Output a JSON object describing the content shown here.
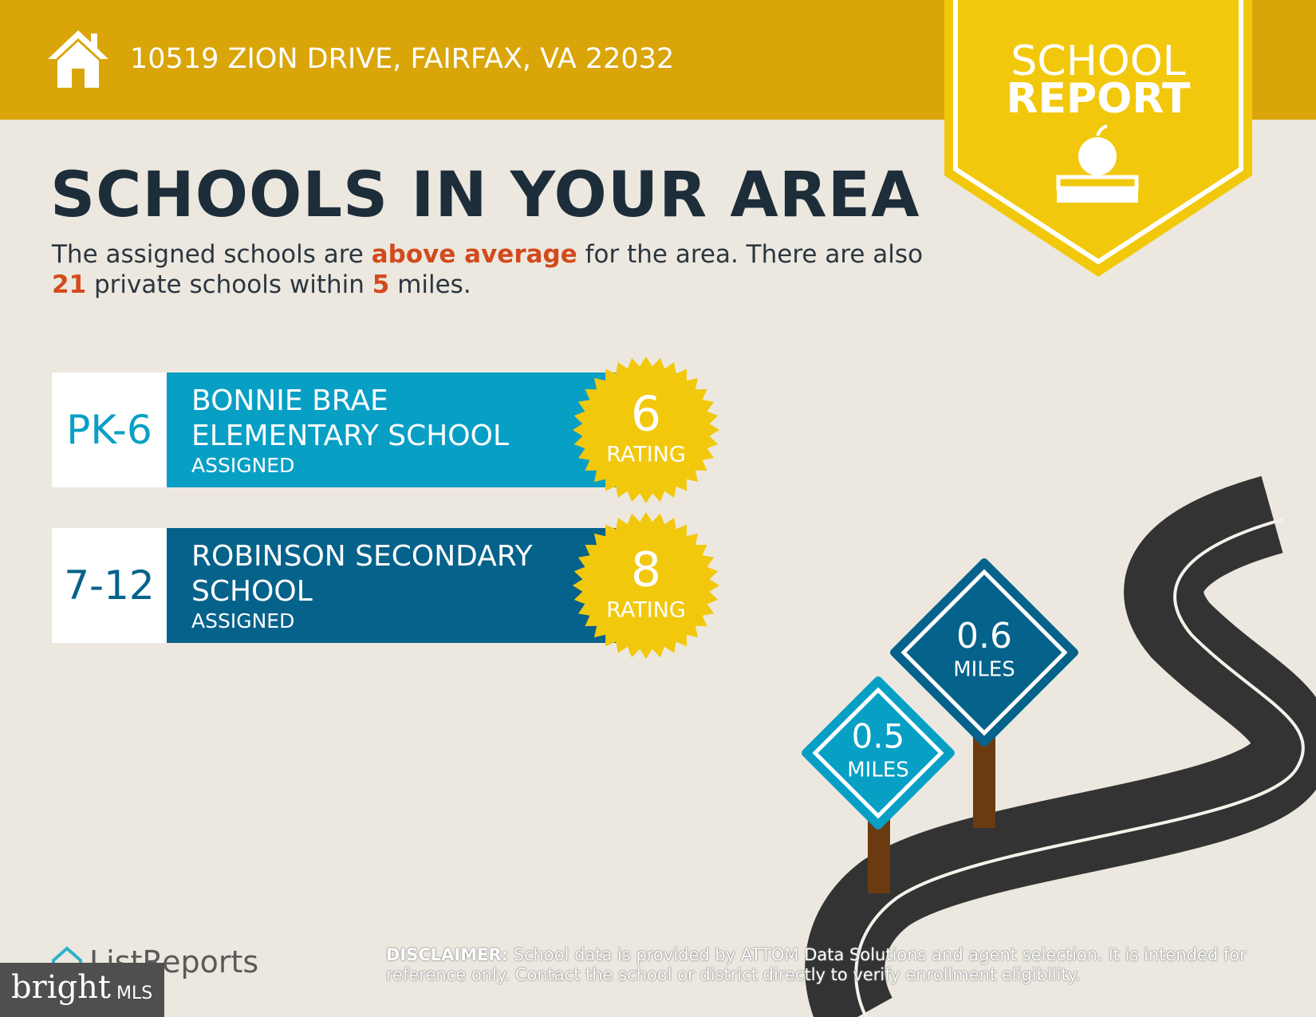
{
  "header": {
    "address": "10519 ZION DRIVE, FAIRFAX, VA 22032"
  },
  "badge": {
    "line1": "SCHOOL",
    "line2": "REPORT"
  },
  "title": "SCHOOLS IN YOUR AREA",
  "summary": {
    "part1": "The assigned schools are",
    "rating_word": "above average",
    "part2": "for the area. There are also",
    "private_count": 21,
    "part3": "private schools within",
    "radius": 5,
    "part4": "miles."
  },
  "schools": [
    {
      "grades": "PK-6",
      "name": "BONNIE BRAE ELEMENTARY SCHOOL",
      "status": "ASSIGNED",
      "rating": 6,
      "rating_label": "RATING",
      "color": "#089fc5"
    },
    {
      "grades": "7-12",
      "name": "ROBINSON SECONDARY SCHOOL",
      "status": "ASSIGNED",
      "rating": 8,
      "rating_label": "RATING",
      "color": "#05628a"
    }
  ],
  "distances": [
    {
      "value": 0.5,
      "unit": "MILES",
      "color": "#089fc5"
    },
    {
      "value": 0.6,
      "unit": "MILES",
      "color": "#05628a"
    }
  ],
  "footer": {
    "brand": "ListReports",
    "disclaimer_label": "DISCLAIMER:",
    "disclaimer": "School data is provided by ATTOM Data Solutions and agent selection. It is intended for reference only. Contact the school or district directly to verify enrollment eligibility.",
    "mls_brand": "bright",
    "mls_suffix": "MLS"
  }
}
